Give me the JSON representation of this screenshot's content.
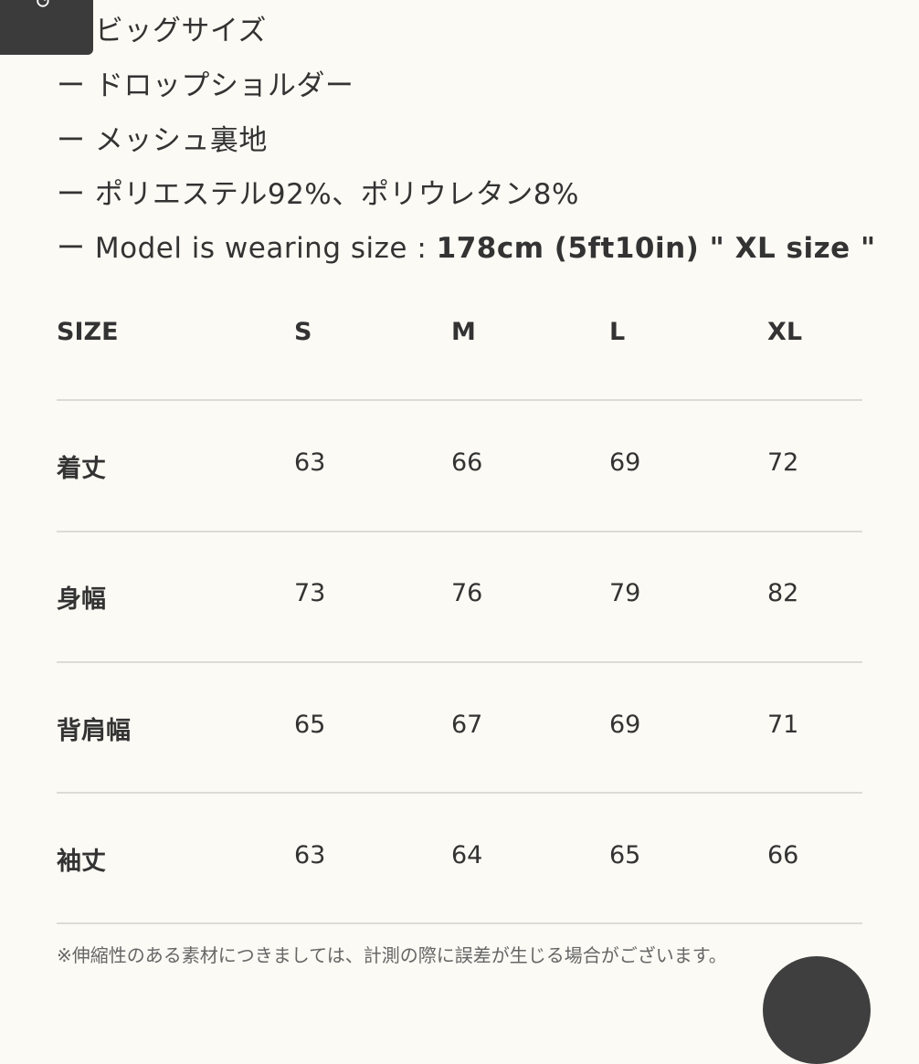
{
  "features": [
    "ー ビッグサイズ",
    "ー ドロップショルダー",
    "ー メッシュ裏地",
    "ー ポリエステル92%、ポリウレタン8%"
  ],
  "model_line": {
    "prefix": "ー Model is wearing size : ",
    "bold": "178cm (5ft10in) \" XL size \""
  },
  "size_table": {
    "headers": [
      "SIZE",
      "S",
      "M",
      "L",
      "XL"
    ],
    "rows": [
      [
        "着丈",
        "63",
        "66",
        "69",
        "72"
      ],
      [
        "身幅",
        "73",
        "76",
        "79",
        "82"
      ],
      [
        "背肩幅",
        "65",
        "67",
        "69",
        "71"
      ],
      [
        "袖丈",
        "63",
        "64",
        "65",
        "66"
      ]
    ]
  },
  "note": "※伸縮性のある素材につきましては、計測の際に誤差が生じる場合がございます。",
  "colors": {
    "background": "#fbfaf4",
    "text": "#333333",
    "button": "#3b3b3b"
  }
}
